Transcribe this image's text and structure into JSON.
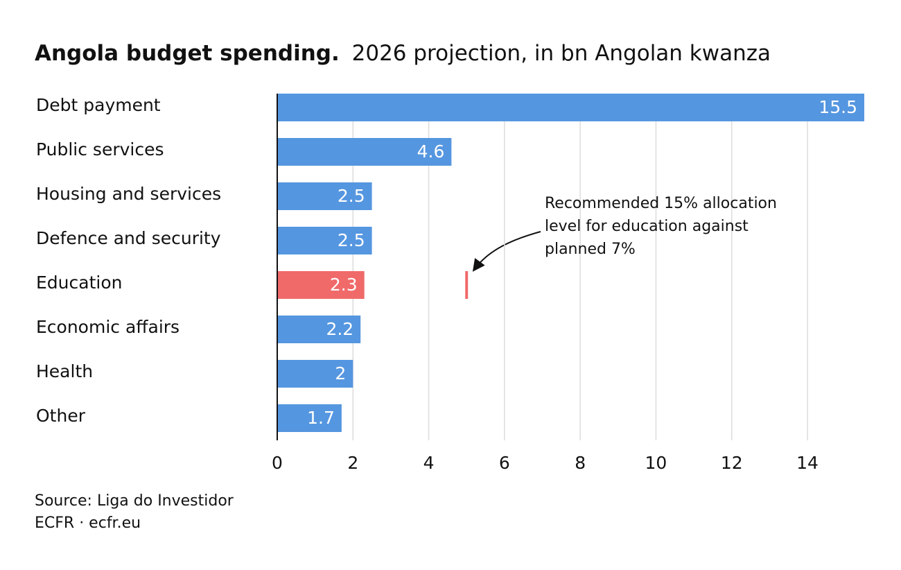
{
  "chart_data": {
    "type": "hbar",
    "title": "Angola budget spending.",
    "subtitle": "2026 projection, in bn Angolan kwanza",
    "categories": [
      "Debt payment",
      "Public services",
      "Housing and services",
      "Defence and security",
      "Education",
      "Economic affairs",
      "Health",
      "Other"
    ],
    "values": [
      15.5,
      4.6,
      2.5,
      2.5,
      2.3,
      2.2,
      2,
      1.7
    ],
    "colors": [
      "#5596e0",
      "#5596e0",
      "#5596e0",
      "#5596e0",
      "#f06a6a",
      "#5596e0",
      "#5596e0",
      "#5596e0"
    ],
    "xlim": [
      0,
      15.5
    ],
    "xticks": [
      0,
      2,
      4,
      6,
      8,
      10,
      12,
      14
    ],
    "grid": true,
    "annotation": {
      "lines": [
        "Recommended 15% allocation",
        "level for education against",
        "planned 7%"
      ],
      "value": 5,
      "color": "#f06a6a"
    },
    "source": [
      "Source: Liga do Investidor",
      "ECFR · ecfr.eu"
    ]
  }
}
